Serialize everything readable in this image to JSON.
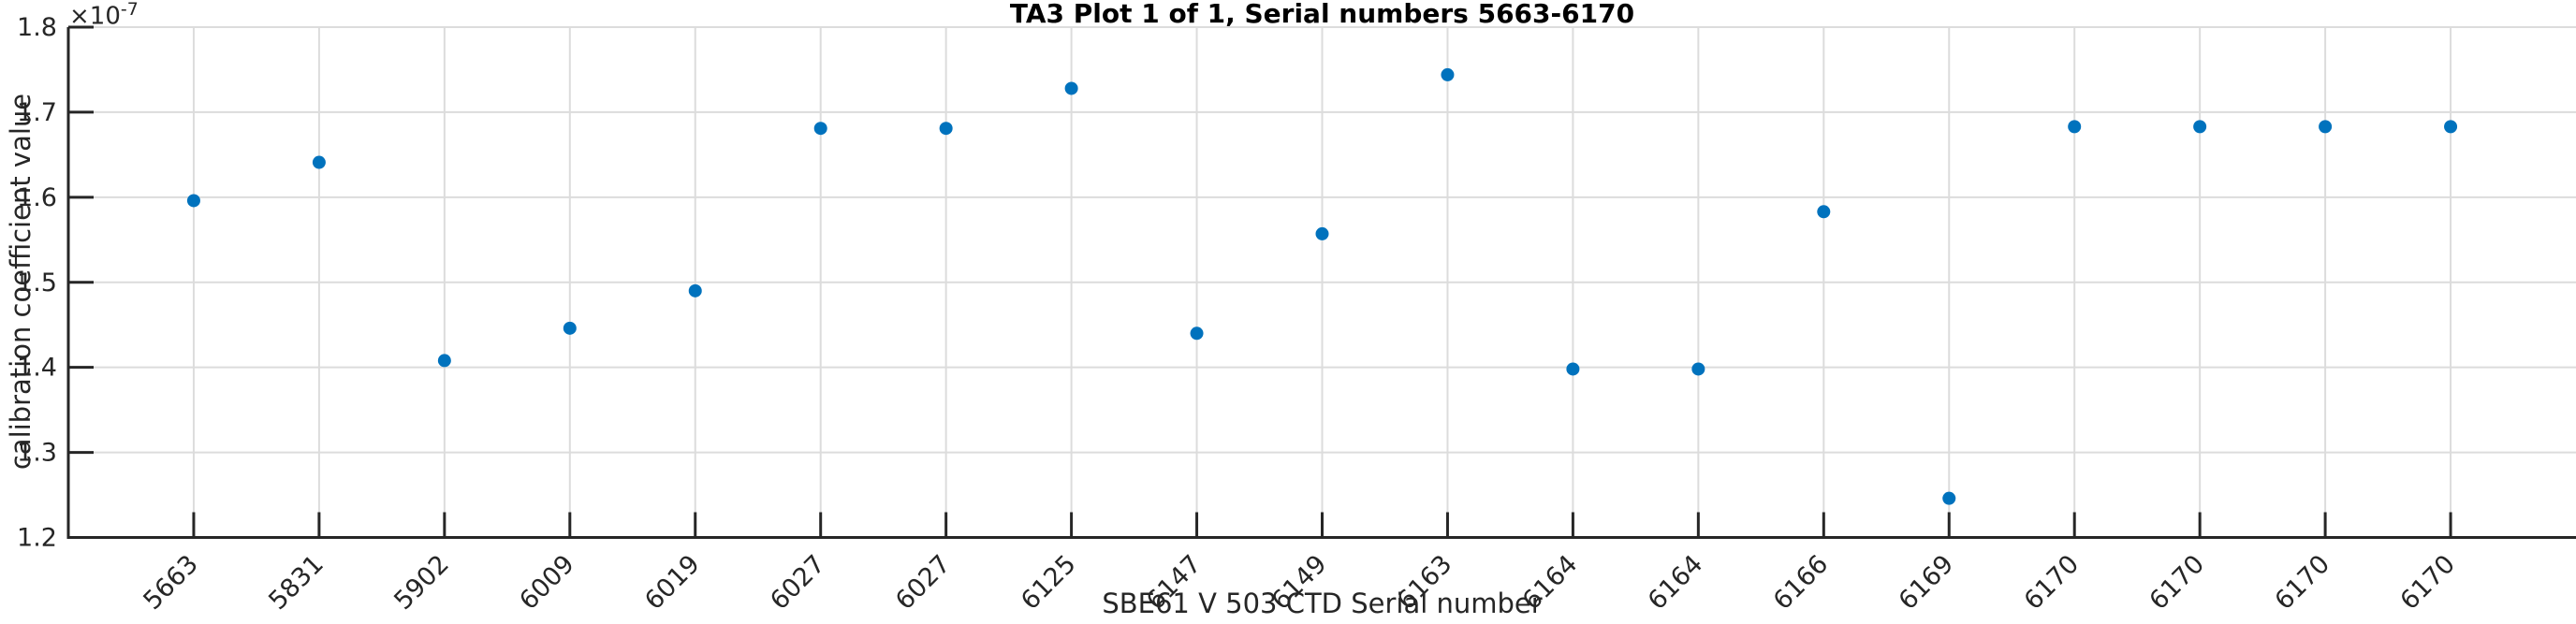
{
  "chart_data": {
    "type": "scatter",
    "title": "TA3 Plot 1 of 1, Serial numbers 5663-6170",
    "xlabel": "SBE61 V 503 CTD Serial number",
    "ylabel": "calibration coefficient value",
    "y_exponent": {
      "base": "×10",
      "power": "-7"
    },
    "value_scale": "1e-7",
    "categories": [
      "5663",
      "5831",
      "5902",
      "6009",
      "6019",
      "6027",
      "6027",
      "6125",
      "6147",
      "6149",
      "6163",
      "6164",
      "6164",
      "6166",
      "6169",
      "6170",
      "6170",
      "6170",
      "6170"
    ],
    "values": [
      1.596,
      1.641,
      1.408,
      1.446,
      1.49,
      1.681,
      1.681,
      1.728,
      1.44,
      1.557,
      1.744,
      1.398,
      1.398,
      1.583,
      1.246,
      1.683,
      1.683,
      1.683,
      1.683
    ],
    "y_ticks": [
      1.2,
      1.3,
      1.4,
      1.5,
      1.6,
      1.7,
      1.8
    ],
    "ylim": [
      1.2,
      1.8
    ],
    "grid": true,
    "legend": null,
    "marker": {
      "shape": "circle",
      "color": "#0072BD"
    },
    "axis_color": "#262626",
    "grid_color": "#dcdcdc"
  }
}
